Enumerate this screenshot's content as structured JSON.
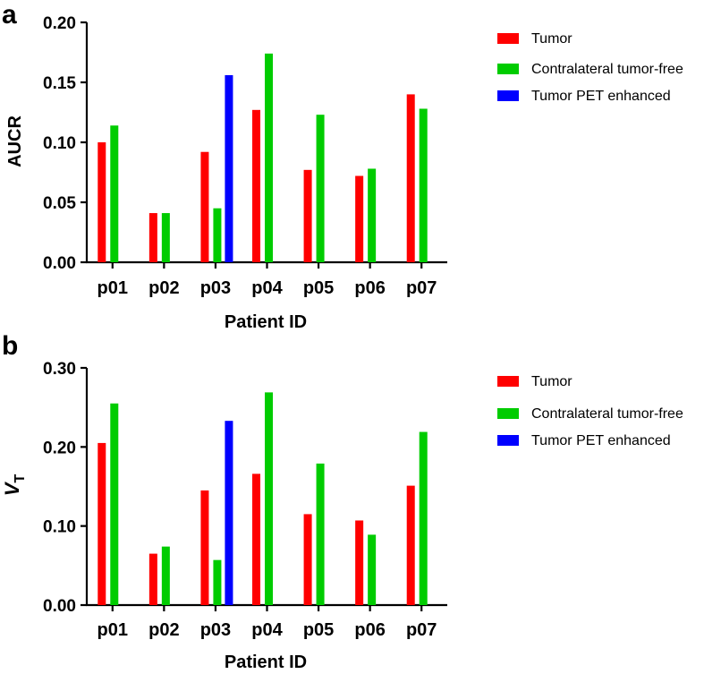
{
  "legend_labels": {
    "tumor": "Tumor",
    "contralateral": "Contralateral tumor-free",
    "pet_enhanced": "Tumor PET enhanced"
  },
  "colors": {
    "tumor": "#ff0000",
    "contralateral": "#00cc00",
    "pet_enhanced": "#0000ff",
    "axis": "#000000"
  },
  "chart_data": [
    {
      "panel": "a",
      "type": "bar",
      "title": "",
      "xlabel": "Patient ID",
      "ylabel": "AUCR",
      "ylim": [
        0,
        0.2
      ],
      "yticks": [
        "0.00",
        "0.05",
        "0.10",
        "0.15",
        "0.20"
      ],
      "categories": [
        "p01",
        "p02",
        "p03",
        "p04",
        "p05",
        "p06",
        "p07"
      ],
      "legend_position": "top-right",
      "series": [
        {
          "name": "Tumor",
          "key": "tumor",
          "values": [
            0.1,
            0.041,
            0.092,
            0.127,
            0.077,
            0.072,
            0.14
          ]
        },
        {
          "name": "Contralateral tumor-free",
          "key": "contralateral",
          "values": [
            0.114,
            0.041,
            0.045,
            0.174,
            0.123,
            0.078,
            0.128
          ]
        },
        {
          "name": "Tumor PET enhanced",
          "key": "pet_enhanced",
          "values": [
            null,
            null,
            0.156,
            null,
            null,
            null,
            null
          ]
        }
      ]
    },
    {
      "panel": "b",
      "type": "bar",
      "title": "",
      "xlabel": "Patient ID",
      "ylabel": "V",
      "ylabel_sub": "T",
      "ylim": [
        0,
        0.3
      ],
      "yticks": [
        "0.00",
        "0.10",
        "0.20",
        "0.30"
      ],
      "categories": [
        "p01",
        "p02",
        "p03",
        "p04",
        "p05",
        "p06",
        "p07"
      ],
      "legend_position": "top-right",
      "series": [
        {
          "name": "Tumor",
          "key": "tumor",
          "values": [
            0.205,
            0.065,
            0.145,
            0.166,
            0.115,
            0.107,
            0.151
          ]
        },
        {
          "name": "Contralateral tumor-free",
          "key": "contralateral",
          "values": [
            0.255,
            0.074,
            0.057,
            0.269,
            0.179,
            0.089,
            0.219
          ]
        },
        {
          "name": "Tumor PET enhanced",
          "key": "pet_enhanced",
          "values": [
            null,
            null,
            0.233,
            null,
            null,
            null,
            null
          ]
        }
      ]
    }
  ]
}
